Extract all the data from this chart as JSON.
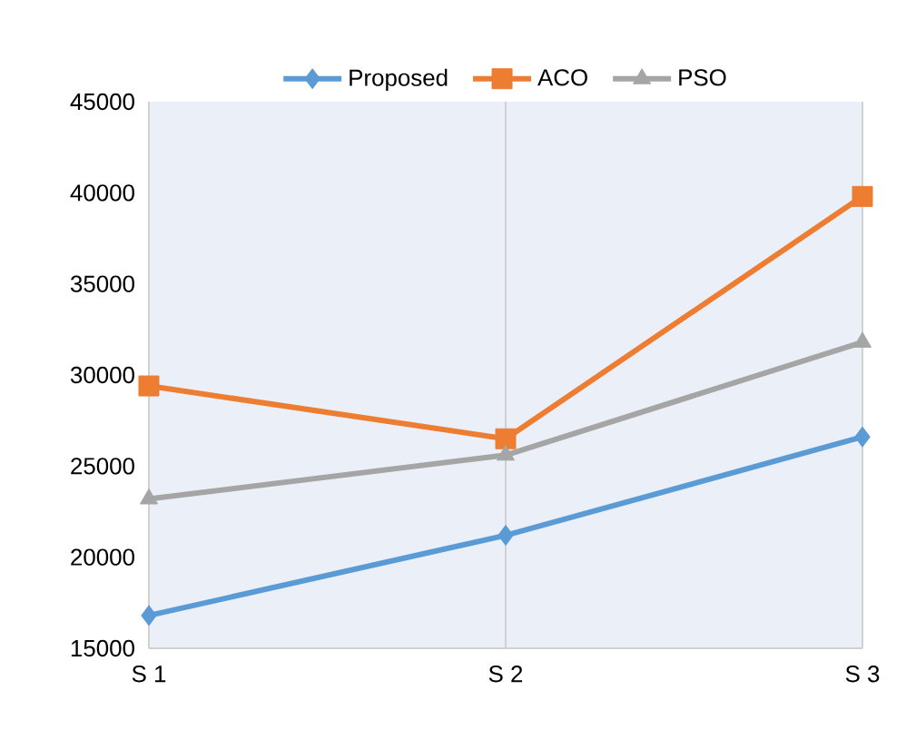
{
  "chart_data": {
    "type": "line",
    "categories": [
      "S 1",
      "S 2",
      "S 3"
    ],
    "series": [
      {
        "name": "Proposed",
        "color": "#5b9bd5",
        "marker": "diamond",
        "values": [
          16800,
          21200,
          26600
        ]
      },
      {
        "name": "ACO",
        "color": "#ed7d31",
        "marker": "square",
        "values": [
          29400,
          26500,
          39800
        ]
      },
      {
        "name": "PSO",
        "color": "#a5a5a5",
        "marker": "triangle",
        "values": [
          23200,
          25600,
          31800
        ]
      }
    ],
    "ylim": [
      15000,
      45000
    ],
    "yticks": [
      15000,
      20000,
      25000,
      30000,
      35000,
      40000,
      45000
    ],
    "grid": "x",
    "legend": "top",
    "line_style": "solid"
  }
}
